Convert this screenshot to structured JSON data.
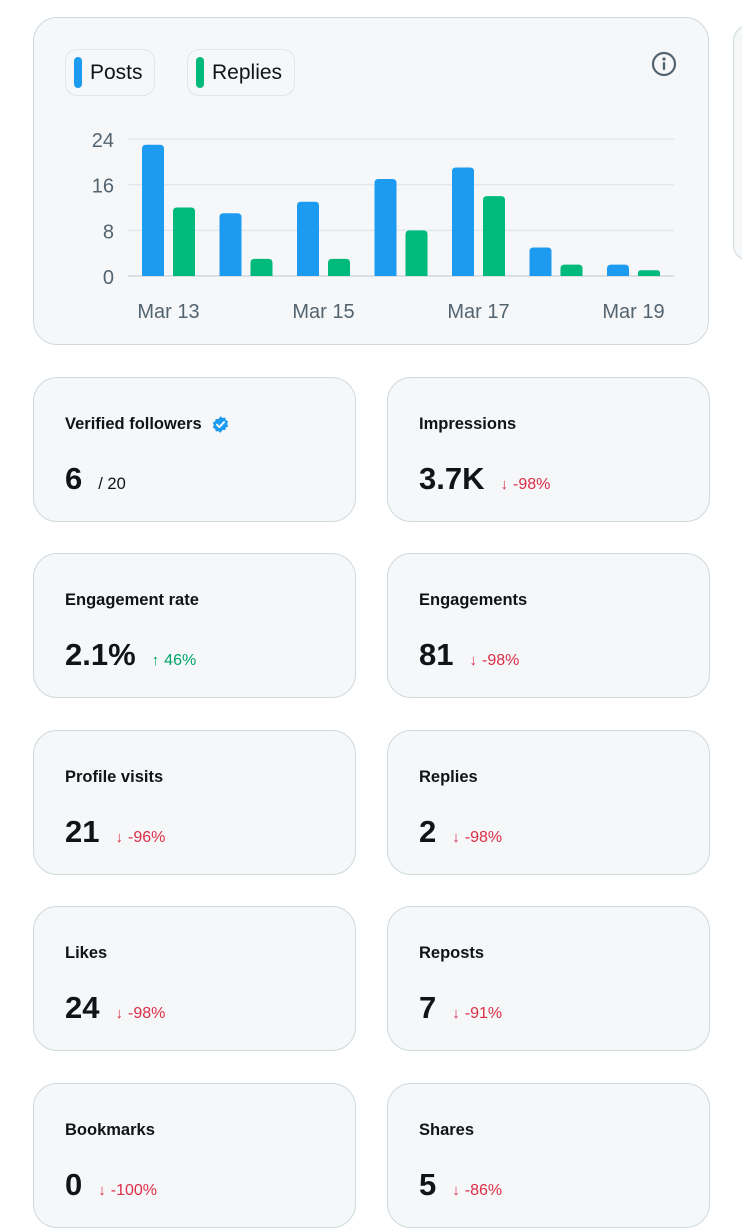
{
  "chart_data": {
    "type": "bar",
    "title": "",
    "xlabel": "",
    "ylabel": "",
    "ylim": [
      0,
      24
    ],
    "yticks": [
      0,
      8,
      16,
      24
    ],
    "categories": [
      "Mar 13",
      "Mar 14",
      "Mar 15",
      "Mar 16",
      "Mar 17",
      "Mar 18",
      "Mar 19"
    ],
    "x_tick_labels": [
      "Mar 13",
      "Mar 15",
      "Mar 17",
      "Mar 19"
    ],
    "grid": true,
    "legend_position": "top-left",
    "series": [
      {
        "name": "Posts",
        "color": "#1d9bf0",
        "values": [
          23,
          11,
          13,
          17,
          19,
          5,
          2
        ]
      },
      {
        "name": "Replies",
        "color": "#00ba7c",
        "values": [
          12,
          3,
          3,
          8,
          14,
          2,
          1
        ]
      }
    ]
  },
  "chart": {
    "legend": {
      "posts": "Posts",
      "replies": "Replies"
    },
    "info_icon": "info-circle-icon"
  },
  "colors": {
    "posts": "#1d9bf0",
    "replies": "#00ba7c",
    "down": "#dc2d46",
    "up": "#00a26a"
  },
  "metrics": {
    "verified_followers": {
      "label": "Verified followers",
      "value": "6",
      "sub": "/ 20",
      "icon": "verified-badge-icon"
    },
    "impressions": {
      "label": "Impressions",
      "value": "3.7K",
      "arrow": "↓",
      "delta": "-98%"
    },
    "engagement_rate": {
      "label": "Engagement rate",
      "value": "2.1%",
      "arrow": "↑",
      "delta": "46%"
    },
    "engagements": {
      "label": "Engagements",
      "value": "81",
      "arrow": "↓",
      "delta": "-98%"
    },
    "profile_visits": {
      "label": "Profile visits",
      "value": "21",
      "arrow": "↓",
      "delta": "-96%"
    },
    "replies": {
      "label": "Replies",
      "value": "2",
      "arrow": "↓",
      "delta": "-98%"
    },
    "likes": {
      "label": "Likes",
      "value": "24",
      "arrow": "↓",
      "delta": "-98%"
    },
    "reposts": {
      "label": "Reposts",
      "value": "7",
      "arrow": "↓",
      "delta": "-91%"
    },
    "bookmarks": {
      "label": "Bookmarks",
      "value": "0",
      "arrow": "↓",
      "delta": "-100%"
    },
    "shares": {
      "label": "Shares",
      "value": "5",
      "arrow": "↓",
      "delta": "-86%"
    }
  }
}
